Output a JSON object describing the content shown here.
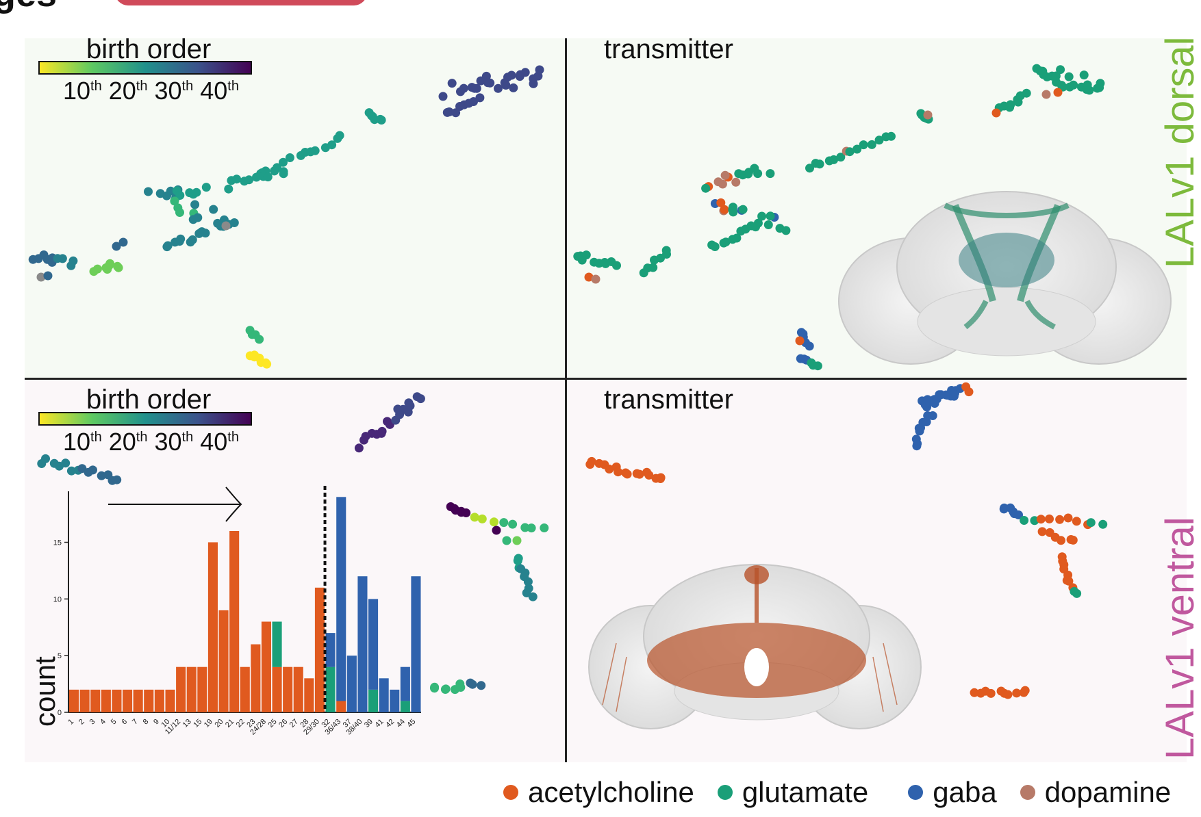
{
  "figure": {
    "header_cut_text": "ages",
    "quadrants": {
      "top_left": {
        "title": "birth order",
        "ticks": [
          "10",
          "20",
          "30",
          "40"
        ],
        "tick_suffix": "th"
      },
      "top_right": {
        "title": "transmitter"
      },
      "bottom_left": {
        "title": "birth order",
        "ticks": [
          "10",
          "20",
          "30",
          "40"
        ],
        "tick_suffix": "th"
      },
      "bottom_right": {
        "title": "transmitter"
      }
    },
    "side_labels": {
      "dorsal": "LALv1 dorsal",
      "ventral": "LALv1 ventral"
    },
    "side_label_colors": {
      "dorsal": "#7dba3c",
      "ventral": "#c0589e"
    },
    "legend": [
      {
        "label": "acetylcholine",
        "color": "#e05a1f"
      },
      {
        "label": "glutamate",
        "color": "#1a9f78"
      },
      {
        "label": "gaba",
        "color": "#2f62ad"
      },
      {
        "label": "dopamine",
        "color": "#b77a68"
      }
    ],
    "histogram_ylabel": "count"
  },
  "chart_data": {
    "type": "bar",
    "stacked": true,
    "categories": [
      "1",
      "2",
      "3",
      "4",
      "5",
      "6",
      "7",
      "8",
      "9",
      "10",
      "11/12",
      "13",
      "15",
      "19",
      "20",
      "21",
      "22",
      "23",
      "24/28",
      "25",
      "26",
      "27",
      "28",
      "29/30",
      "32",
      "36/43",
      "37",
      "38/40",
      "39",
      "41",
      "42",
      "44",
      "45"
    ],
    "series": [
      {
        "name": "acetylcholine",
        "values": [
          2,
          2,
          2,
          2,
          2,
          2,
          2,
          2,
          2,
          2,
          4,
          4,
          4,
          15,
          9,
          16,
          4,
          6,
          8,
          4,
          4,
          4,
          3,
          11,
          0,
          1,
          0,
          0,
          0,
          0,
          0,
          0,
          0
        ]
      },
      {
        "name": "glutamate",
        "values": [
          0,
          0,
          0,
          0,
          0,
          0,
          0,
          0,
          0,
          0,
          0,
          0,
          0,
          0,
          0,
          0,
          0,
          0,
          0,
          4,
          0,
          0,
          0,
          0,
          4,
          0,
          0,
          0,
          2,
          0,
          0,
          1,
          0
        ]
      },
      {
        "name": "gaba",
        "values": [
          0,
          0,
          0,
          0,
          0,
          0,
          0,
          0,
          0,
          0,
          0,
          0,
          0,
          0,
          0,
          0,
          0,
          0,
          0,
          0,
          0,
          0,
          0,
          0,
          3,
          18,
          5,
          12,
          8,
          3,
          2,
          3,
          12
        ]
      }
    ],
    "yticks": [
      "0",
      "5",
      "10",
      "15"
    ],
    "ylim": [
      0,
      19.5
    ],
    "ylabel": "count",
    "divider_after_category": "29/30"
  }
}
